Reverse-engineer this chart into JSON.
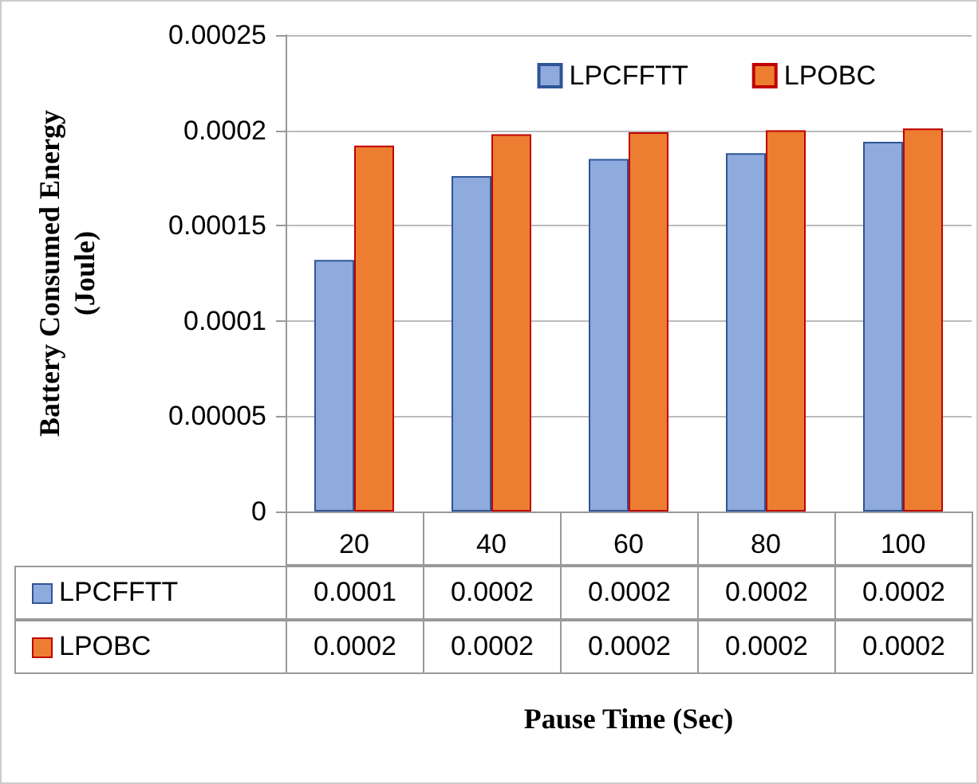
{
  "chart_data": {
    "type": "bar",
    "xlabel": "Pause Time (Sec)",
    "ylabel": "Battery Consumed Energy\n(Joule)",
    "categories": [
      "20",
      "40",
      "60",
      "80",
      "100"
    ],
    "series": [
      {
        "name": "LPCFFTT",
        "color": "#8faadc",
        "values": [
          0.000132,
          0.000176,
          0.000185,
          0.000188,
          0.000194
        ],
        "value_labels": [
          "0.0001",
          "0.0002",
          "0.0002",
          "0.0002",
          "0.0002"
        ]
      },
      {
        "name": "LPOBC",
        "color": "#ed7d31",
        "values": [
          0.000192,
          0.000198,
          0.000199,
          0.0002,
          0.000201
        ],
        "value_labels": [
          "0.0002",
          "0.0002",
          "0.0002",
          "0.0002",
          "0.0002"
        ]
      }
    ],
    "ylim": [
      0,
      0.00025
    ],
    "yticks": [
      0,
      {
        "value": 5e-05,
        "label": "0.00005"
      },
      0.0001,
      0.00015,
      0.0002,
      0.00025
    ],
    "grid": "y",
    "legend": "top right"
  }
}
